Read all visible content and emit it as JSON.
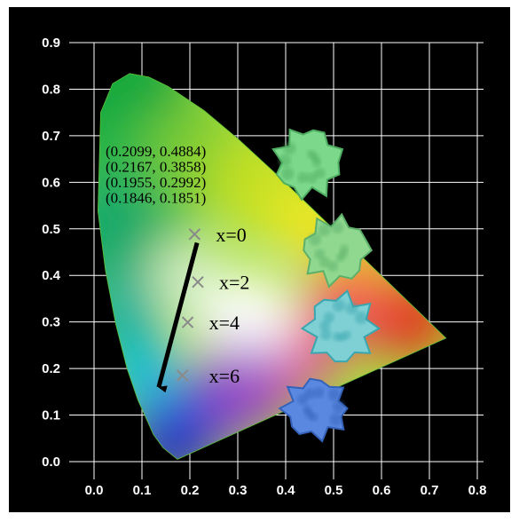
{
  "chart_data": {
    "type": "scatter",
    "title": "",
    "xlabel": "",
    "ylabel": "",
    "xlim": [
      -0.05,
      0.85
    ],
    "ylim": [
      -0.05,
      0.92
    ],
    "grid": true,
    "x_ticks": [
      "0.0",
      "0.1",
      "0.2",
      "0.3",
      "0.4",
      "0.5",
      "0.6",
      "0.7",
      "0.8"
    ],
    "y_ticks": [
      "0.0",
      "0.1",
      "0.2",
      "0.3",
      "0.4",
      "0.5",
      "0.6",
      "0.7",
      "0.8",
      "0.9"
    ],
    "coordinate_labels": [
      "(0.2099, 0.4884)",
      "(0.2167, 0.3858)",
      "(0.1955, 0.2992)",
      "(0.1846, 0.1851)"
    ],
    "series": [
      {
        "points": [
          {
            "x": 0.2099,
            "y": 0.4884,
            "label": "x=0"
          },
          {
            "x": 0.2167,
            "y": 0.3858,
            "label": "x=2"
          },
          {
            "x": 0.1955,
            "y": 0.2992,
            "label": "x=4"
          },
          {
            "x": 0.1846,
            "y": 0.1851,
            "label": "x=6"
          }
        ],
        "marker": "x",
        "marker_color": "#8a8a8a"
      }
    ],
    "trend_arrow": {
      "from": [
        0.215,
        0.47
      ],
      "to": [
        0.135,
        0.16
      ]
    },
    "chromaticity_locus": [
      [
        0.1741,
        0.005
      ],
      [
        0.144,
        0.0297
      ],
      [
        0.1241,
        0.0578
      ],
      [
        0.0913,
        0.1327
      ],
      [
        0.0687,
        0.2007
      ],
      [
        0.0454,
        0.295
      ],
      [
        0.0235,
        0.4127
      ],
      [
        0.0082,
        0.5384
      ],
      [
        0.0139,
        0.7502
      ],
      [
        0.0389,
        0.812
      ],
      [
        0.0743,
        0.8338
      ],
      [
        0.1142,
        0.8262
      ],
      [
        0.1547,
        0.8059
      ],
      [
        0.2296,
        0.7543
      ],
      [
        0.3016,
        0.6923
      ],
      [
        0.3731,
        0.6245
      ],
      [
        0.4441,
        0.5547
      ],
      [
        0.5125,
        0.4866
      ],
      [
        0.5752,
        0.4242
      ],
      [
        0.627,
        0.3725
      ],
      [
        0.6658,
        0.334
      ],
      [
        0.6915,
        0.3083
      ],
      [
        0.7347,
        0.2653
      ]
    ],
    "background_color": "#000000",
    "grid_color": "#ffffff"
  }
}
